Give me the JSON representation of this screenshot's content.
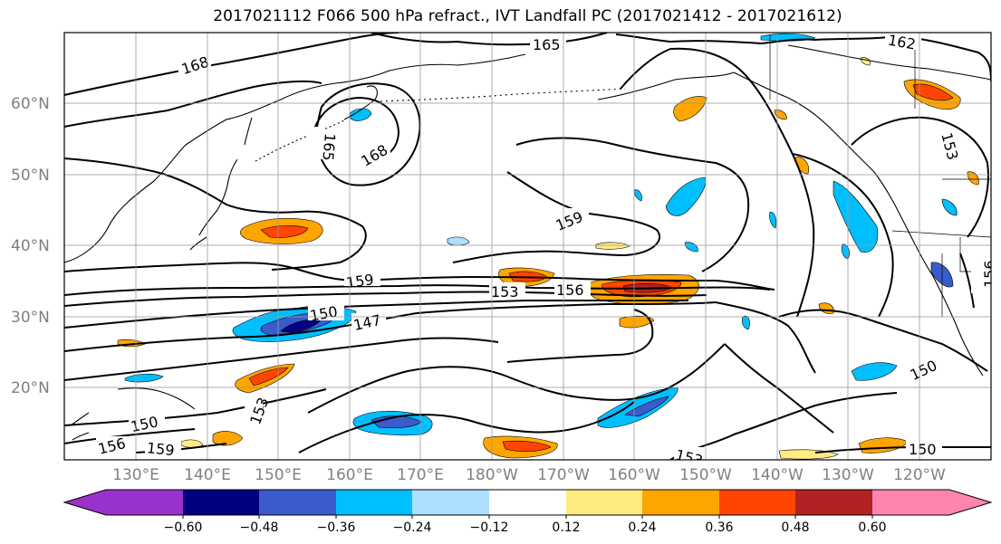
{
  "title": "2017021112 F066 500 hPa refract., IVT Landfall PC (2017021412 - 2017021612)",
  "map": {
    "lat_labels": [
      "60°N",
      "50°N",
      "40°N",
      "30°N",
      "20°N"
    ],
    "lon_labels": [
      "130°E",
      "140°E",
      "150°E",
      "160°E",
      "170°E",
      "180°W",
      "170°W",
      "160°W",
      "150°W",
      "140°W",
      "130°W",
      "120°W"
    ],
    "contour_labels": [
      "168",
      "165",
      "162",
      "168",
      "165",
      "159",
      "159",
      "153",
      "156",
      "150",
      "147",
      "153",
      "150",
      "156",
      "159",
      "153",
      "150",
      "150",
      "153",
      "156"
    ]
  },
  "colorbar": {
    "ticks": [
      "−0.60",
      "−0.48",
      "−0.36",
      "−0.24",
      "−0.12",
      "0.12",
      "0.24",
      "0.36",
      "0.48",
      "0.60"
    ],
    "colors": [
      "#9932CC",
      "#000080",
      "#3A5BCB",
      "#00BFFF",
      "#ADDFFF",
      "#FFFFFF",
      "#FFEB80",
      "#FFA500",
      "#FF4500",
      "#B22222",
      "#FF85AD"
    ]
  },
  "fill_colors": {
    "orange": "#FFA500",
    "orange_red": "#FF4500",
    "yellow": "#FFEB80",
    "light_blue": "#ADDFFF",
    "sky_blue": "#00BFFF",
    "royal_blue": "#3A5BCB",
    "navy": "#000080",
    "dark_red": "#B22222"
  }
}
